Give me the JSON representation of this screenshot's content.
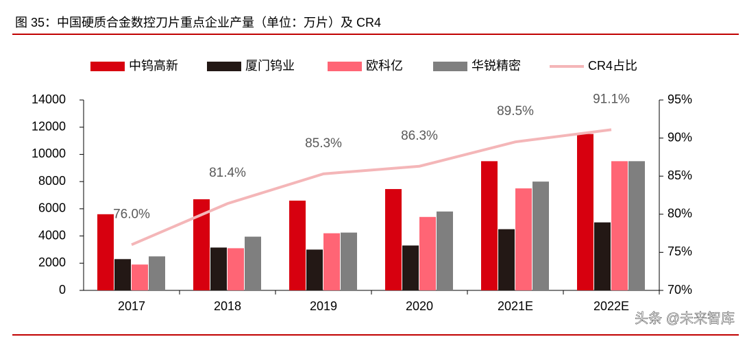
{
  "chart_data": {
    "type": "bar_line",
    "title": "图 35：中国硬质合金数控刀片重点企业产量（单位：万片）及 CR4",
    "categories": [
      "2017",
      "2018",
      "2019",
      "2020",
      "2021E",
      "2022E"
    ],
    "series": [
      {
        "name": "中钨高新",
        "color": "#d7000f",
        "type": "bar",
        "values": [
          5600,
          6700,
          6600,
          7450,
          9500,
          11500
        ]
      },
      {
        "name": "厦门钨业",
        "color": "#231815",
        "type": "bar",
        "values": [
          2300,
          3150,
          3000,
          3300,
          4500,
          5000
        ]
      },
      {
        "name": "欧科亿",
        "color": "#ff6575",
        "type": "bar",
        "values": [
          1900,
          3100,
          4200,
          5400,
          7500,
          9500
        ]
      },
      {
        "name": "华锐精密",
        "color": "#7f7f7f",
        "type": "bar",
        "values": [
          2500,
          3950,
          4250,
          5800,
          8000,
          9500
        ]
      },
      {
        "name": "CR4占比",
        "color": "#f4b6b8",
        "type": "line",
        "axis": "y2",
        "values": [
          76.0,
          81.4,
          85.3,
          86.3,
          89.5,
          91.1
        ],
        "value_labels": [
          "76.0%",
          "81.4%",
          "85.3%",
          "86.3%",
          "89.5%",
          "91.1%"
        ]
      }
    ],
    "ylim": [
      0,
      14000
    ],
    "yticks": [
      0,
      2000,
      4000,
      6000,
      8000,
      10000,
      12000,
      14000
    ],
    "y2lim": [
      70,
      95
    ],
    "y2ticks": [
      {
        "value": 70,
        "label": "70%"
      },
      {
        "value": 75,
        "label": "75%"
      },
      {
        "value": 80,
        "label": "80%"
      },
      {
        "value": 85,
        "label": "85%"
      },
      {
        "value": 90,
        "label": "90%"
      },
      {
        "value": 95,
        "label": "95%"
      }
    ],
    "legend": "top"
  },
  "watermark": "头条 @未来智库"
}
